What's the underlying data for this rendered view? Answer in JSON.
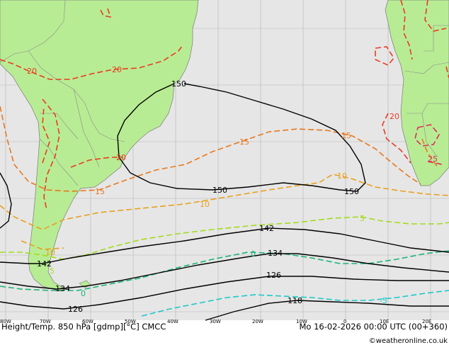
{
  "map": {
    "caption_left": "Height/Temp. 850 hPa [gdmp][°C] CMCC",
    "caption_right": "Mo 16-02-2026 00:00 UTC (00+360)",
    "credit": "©weatheronline.co.uk",
    "lon_labels": [
      "80W",
      "70W",
      "60W",
      "50W",
      "40W",
      "30W",
      "20W",
      "10W",
      "0",
      "10E",
      "20E"
    ],
    "height_labels": [
      "150",
      "150",
      "150",
      "142",
      "142",
      "134",
      "134",
      "126",
      "126",
      "118"
    ],
    "temp_labels": [
      "20",
      "20",
      "20",
      "15",
      "15",
      "15",
      "10",
      "10",
      "10",
      "5",
      "5",
      "0",
      "0",
      "-5",
      "20",
      "25"
    ],
    "colors": {
      "ocean": "#e6e6e6",
      "land": "#b8ec94",
      "height_contour": "#000000",
      "temp_25": "#dc2d5a",
      "temp_20": "#e83c23",
      "temp_15": "#e8781e",
      "temp_10": "#e8a01e",
      "temp_5": "#a0dc1e",
      "temp_0": "#1eb478",
      "temp_minus5": "#1ec8c8"
    }
  }
}
